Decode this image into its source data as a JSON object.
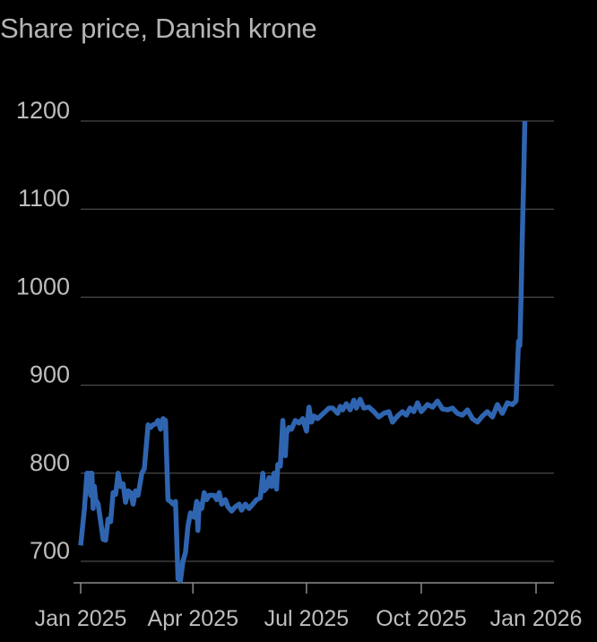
{
  "chart_data": {
    "type": "line",
    "title": "Share price, Danish krone",
    "xlabel": "",
    "ylabel": "",
    "x_range": [
      "2025-01-01",
      "2026-01-12"
    ],
    "ylim": [
      670,
      1210
    ],
    "y_ticks": [
      700,
      800,
      900,
      1000,
      1100,
      1200
    ],
    "x_ticks": [
      {
        "date": "2025-01-01",
        "label": "Jan 2025"
      },
      {
        "date": "2025-04-01",
        "label": "Apr 2025"
      },
      {
        "date": "2025-07-01",
        "label": "Jul 2025"
      },
      {
        "date": "2025-10-01",
        "label": "Oct 2025"
      },
      {
        "date": "2026-01-01",
        "label": "Jan 2026"
      }
    ],
    "grid": "horizontal",
    "series": [
      {
        "name": "",
        "color": "#2f65b0",
        "points": [
          [
            "2025-01-01",
            718
          ],
          [
            "2025-01-04",
            760
          ],
          [
            "2025-01-06",
            800
          ],
          [
            "2025-01-07",
            780
          ],
          [
            "2025-01-08",
            800
          ],
          [
            "2025-01-09",
            775
          ],
          [
            "2025-01-10",
            800
          ],
          [
            "2025-01-11",
            760
          ],
          [
            "2025-01-12",
            785
          ],
          [
            "2025-01-13",
            770
          ],
          [
            "2025-01-15",
            765
          ],
          [
            "2025-01-17",
            745
          ],
          [
            "2025-01-19",
            725
          ],
          [
            "2025-01-21",
            724
          ],
          [
            "2025-01-23",
            748
          ],
          [
            "2025-01-25",
            745
          ],
          [
            "2025-01-27",
            778
          ],
          [
            "2025-01-29",
            776
          ],
          [
            "2025-01-31",
            800
          ],
          [
            "2025-02-02",
            785
          ],
          [
            "2025-02-04",
            788
          ],
          [
            "2025-02-06",
            767
          ],
          [
            "2025-02-08",
            780
          ],
          [
            "2025-02-10",
            778
          ],
          [
            "2025-02-12",
            765
          ],
          [
            "2025-02-14",
            780
          ],
          [
            "2025-02-16",
            775
          ],
          [
            "2025-02-19",
            800
          ],
          [
            "2025-02-21",
            805
          ],
          [
            "2025-02-24",
            855
          ],
          [
            "2025-02-26",
            852
          ],
          [
            "2025-02-28",
            855
          ],
          [
            "2025-03-02",
            856
          ],
          [
            "2025-03-04",
            860
          ],
          [
            "2025-03-06",
            850
          ],
          [
            "2025-03-08",
            862
          ],
          [
            "2025-03-10",
            860
          ],
          [
            "2025-03-12",
            770
          ],
          [
            "2025-03-14",
            768
          ],
          [
            "2025-03-16",
            765
          ],
          [
            "2025-03-18",
            768
          ],
          [
            "2025-03-20",
            680
          ],
          [
            "2025-03-22",
            678
          ],
          [
            "2025-03-24",
            700
          ],
          [
            "2025-03-26",
            710
          ],
          [
            "2025-03-28",
            740
          ],
          [
            "2025-03-30",
            755
          ],
          [
            "2025-04-02",
            750
          ],
          [
            "2025-04-04",
            768
          ],
          [
            "2025-04-05",
            735
          ],
          [
            "2025-04-06",
            765
          ],
          [
            "2025-04-08",
            760
          ],
          [
            "2025-04-10",
            778
          ],
          [
            "2025-04-12",
            770
          ],
          [
            "2025-04-14",
            775
          ],
          [
            "2025-04-18",
            775
          ],
          [
            "2025-04-20",
            770
          ],
          [
            "2025-04-22",
            778
          ],
          [
            "2025-04-24",
            765
          ],
          [
            "2025-04-27",
            770
          ],
          [
            "2025-04-29",
            762
          ],
          [
            "2025-05-02",
            757
          ],
          [
            "2025-05-05",
            762
          ],
          [
            "2025-05-08",
            765
          ],
          [
            "2025-05-10",
            758
          ],
          [
            "2025-05-13",
            765
          ],
          [
            "2025-05-16",
            760
          ],
          [
            "2025-05-19",
            765
          ],
          [
            "2025-05-22",
            770
          ],
          [
            "2025-05-25",
            772
          ],
          [
            "2025-05-27",
            800
          ],
          [
            "2025-05-28",
            780
          ],
          [
            "2025-05-30",
            783
          ],
          [
            "2025-06-01",
            795
          ],
          [
            "2025-06-03",
            785
          ],
          [
            "2025-06-05",
            800
          ],
          [
            "2025-06-07",
            782
          ],
          [
            "2025-06-08",
            810
          ],
          [
            "2025-06-10",
            808
          ],
          [
            "2025-06-12",
            860
          ],
          [
            "2025-06-14",
            820
          ],
          [
            "2025-06-15",
            845
          ],
          [
            "2025-06-17",
            852
          ],
          [
            "2025-06-19",
            850
          ],
          [
            "2025-06-22",
            860
          ],
          [
            "2025-06-25",
            857
          ],
          [
            "2025-06-28",
            862
          ],
          [
            "2025-07-01",
            848
          ],
          [
            "2025-07-03",
            875
          ],
          [
            "2025-07-05",
            858
          ],
          [
            "2025-07-07",
            865
          ],
          [
            "2025-07-10",
            862
          ],
          [
            "2025-07-13",
            866
          ],
          [
            "2025-07-16",
            870
          ],
          [
            "2025-07-19",
            874
          ],
          [
            "2025-07-22",
            874
          ],
          [
            "2025-07-26",
            868
          ],
          [
            "2025-07-28",
            876
          ],
          [
            "2025-07-30",
            872
          ],
          [
            "2025-08-02",
            879
          ],
          [
            "2025-08-05",
            872
          ],
          [
            "2025-08-08",
            883
          ],
          [
            "2025-08-10",
            874
          ],
          [
            "2025-08-13",
            884
          ],
          [
            "2025-08-16",
            874
          ],
          [
            "2025-08-20",
            875
          ],
          [
            "2025-08-24",
            870
          ],
          [
            "2025-08-28",
            864
          ],
          [
            "2025-09-01",
            868
          ],
          [
            "2025-09-05",
            870
          ],
          [
            "2025-09-08",
            858
          ],
          [
            "2025-09-12",
            865
          ],
          [
            "2025-09-16",
            870
          ],
          [
            "2025-09-19",
            866
          ],
          [
            "2025-09-22",
            874
          ],
          [
            "2025-09-25",
            870
          ],
          [
            "2025-09-28",
            880
          ],
          [
            "2025-10-01",
            870
          ],
          [
            "2025-10-06",
            878
          ],
          [
            "2025-10-10",
            875
          ],
          [
            "2025-10-14",
            882
          ],
          [
            "2025-10-18",
            873
          ],
          [
            "2025-10-22",
            872
          ],
          [
            "2025-10-26",
            874
          ],
          [
            "2025-10-30",
            868
          ],
          [
            "2025-11-03",
            866
          ],
          [
            "2025-11-07",
            872
          ],
          [
            "2025-11-11",
            862
          ],
          [
            "2025-11-15",
            858
          ],
          [
            "2025-11-19",
            865
          ],
          [
            "2025-11-23",
            870
          ],
          [
            "2025-11-27",
            864
          ],
          [
            "2025-12-01",
            878
          ],
          [
            "2025-12-05",
            868
          ],
          [
            "2025-12-09",
            880
          ],
          [
            "2025-12-13",
            878
          ],
          [
            "2025-12-16",
            882
          ],
          [
            "2025-12-18",
            950
          ],
          [
            "2025-12-19",
            945
          ],
          [
            "2025-12-20",
            1000
          ],
          [
            "2025-12-21",
            1070
          ],
          [
            "2025-12-22",
            1130
          ],
          [
            "2025-12-23",
            1200
          ]
        ]
      }
    ]
  }
}
